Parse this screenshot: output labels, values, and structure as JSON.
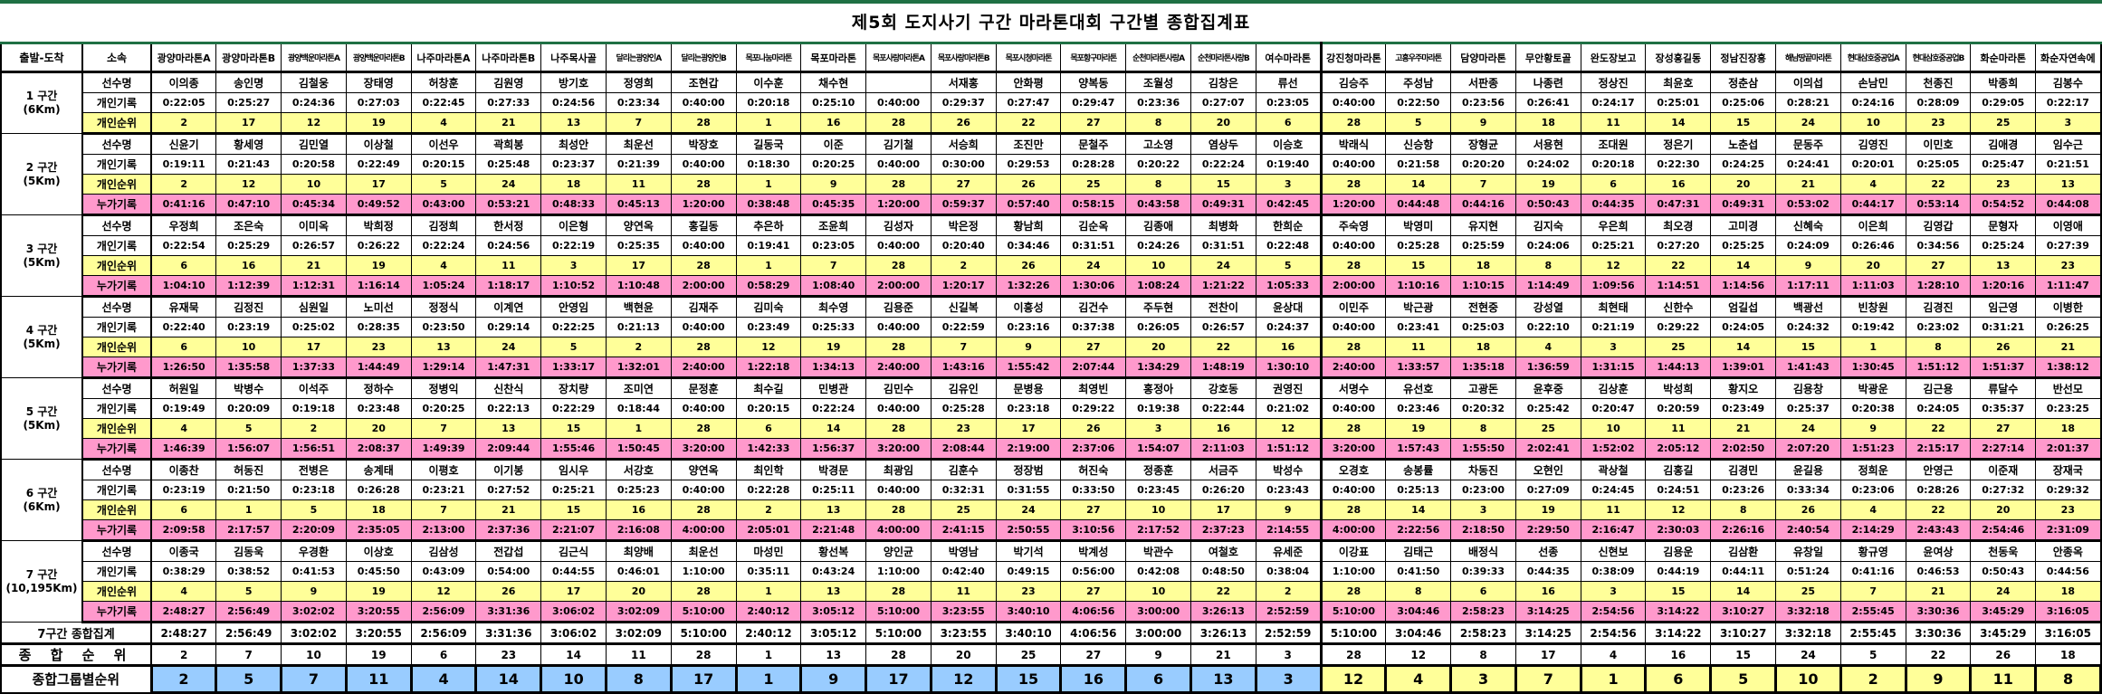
{
  "title": "제5회 도지사기 구간 마라톤대회 구간별 종합집계표",
  "header": {
    "start_finish": "출발-도착",
    "affiliation": "소속"
  },
  "row_labels": {
    "name": "선수명",
    "record": "개인기록",
    "rank": "개인순위",
    "cumulative": "누가기록"
  },
  "summary_labels": {
    "total": "7구간 종합집계",
    "overall_rank": "종 합 순 위",
    "group_rank": "종합그룹별순위"
  },
  "colors": {
    "top_bar_green": "#1F7044",
    "rank_row_yellow": "#FFFF99",
    "cumulative_row_pink": "#FF99CC",
    "group1_blue": "#99CCFF",
    "group2_yellow": "#FFFF99",
    "grid_black": "#000000"
  },
  "group_split_index": 18,
  "teams": [
    "광양마라톤A",
    "광양마라톤B",
    "광양백운마라톤A",
    "광양백운마라톤B",
    "나주마라톤A",
    "나주마라톤B",
    "나주목사골",
    "달리는광양인A",
    "달리는광양인B",
    "목포나눔마라톤",
    "목포마라톤",
    "목포사랑마라톤A",
    "목포사랑마라톤B",
    "목포시청마라톤",
    "목포항구마라톤",
    "순천마라톤사랑A",
    "순천마라톤사랑B",
    "여수마라톤",
    "강진청마라톤",
    "고흥우주마라톤",
    "담양마라톤",
    "무안황토골",
    "완도장보고",
    "장성홍길동",
    "정남진장흥",
    "해남땅끝마라톤",
    "현대삼호중공업A",
    "현대삼호중공업B",
    "화순마라톤",
    "화순자연속에"
  ],
  "sections": [
    {
      "label": "1 구간",
      "distance": "(6Km)",
      "cumulative": false,
      "names": [
        "이의종",
        "송인명",
        "김철웅",
        "장태영",
        "허창훈",
        "김원영",
        "방기호",
        "정영희",
        "조현갑",
        "이수훈",
        "채수현",
        "",
        "서재홍",
        "안화평",
        "양복동",
        "조월성",
        "김창은",
        "류선",
        "김승주",
        "주성남",
        "서판종",
        "나종련",
        "정상진",
        "최윤호",
        "정춘삼",
        "이의섭",
        "손남민",
        "천종진",
        "박종희",
        "김봉수"
      ],
      "records": [
        "0:22:05",
        "0:25:27",
        "0:24:36",
        "0:27:03",
        "0:22:45",
        "0:27:33",
        "0:24:56",
        "0:23:34",
        "0:40:00",
        "0:20:18",
        "0:25:10",
        "0:40:00",
        "0:29:37",
        "0:27:47",
        "0:29:47",
        "0:23:36",
        "0:27:07",
        "0:23:05",
        "0:40:00",
        "0:22:50",
        "0:23:56",
        "0:26:41",
        "0:24:17",
        "0:25:01",
        "0:25:06",
        "0:28:21",
        "0:24:16",
        "0:28:09",
        "0:29:05",
        "0:22:17"
      ],
      "ranks": [
        "2",
        "17",
        "12",
        "19",
        "4",
        "21",
        "13",
        "7",
        "28",
        "1",
        "16",
        "28",
        "26",
        "22",
        "27",
        "8",
        "20",
        "6",
        "28",
        "5",
        "9",
        "18",
        "11",
        "14",
        "15",
        "24",
        "10",
        "23",
        "25",
        "3"
      ]
    },
    {
      "label": "2 구간",
      "distance": "(5Km)",
      "cumulative": true,
      "names": [
        "신윤기",
        "황세영",
        "김민열",
        "이상철",
        "이선우",
        "곽희봉",
        "최성안",
        "최운선",
        "박장호",
        "길동국",
        "이준",
        "김기철",
        "서승희",
        "조진만",
        "문철주",
        "고소영",
        "염상두",
        "이승호",
        "박래식",
        "신승항",
        "장형균",
        "서용현",
        "조대원",
        "정은기",
        "노춘섭",
        "문동주",
        "김영진",
        "이민호",
        "김애경",
        "임수근"
      ],
      "records": [
        "0:19:11",
        "0:21:43",
        "0:20:58",
        "0:22:49",
        "0:20:15",
        "0:25:48",
        "0:23:37",
        "0:21:39",
        "0:40:00",
        "0:18:30",
        "0:20:25",
        "0:40:00",
        "0:30:00",
        "0:29:53",
        "0:28:28",
        "0:20:22",
        "0:22:24",
        "0:19:40",
        "0:40:00",
        "0:21:58",
        "0:20:20",
        "0:24:02",
        "0:20:18",
        "0:22:30",
        "0:24:25",
        "0:24:41",
        "0:20:01",
        "0:25:05",
        "0:25:47",
        "0:21:51"
      ],
      "ranks": [
        "2",
        "12",
        "10",
        "17",
        "5",
        "24",
        "18",
        "11",
        "28",
        "1",
        "9",
        "28",
        "27",
        "26",
        "25",
        "8",
        "15",
        "3",
        "28",
        "14",
        "7",
        "19",
        "6",
        "16",
        "20",
        "21",
        "4",
        "22",
        "23",
        "13"
      ],
      "cumulatives": [
        "0:41:16",
        "0:47:10",
        "0:45:34",
        "0:49:52",
        "0:43:00",
        "0:53:21",
        "0:48:33",
        "0:45:13",
        "1:20:00",
        "0:38:48",
        "0:45:35",
        "1:20:00",
        "0:59:37",
        "0:57:40",
        "0:58:15",
        "0:43:58",
        "0:49:31",
        "0:42:45",
        "1:20:00",
        "0:44:48",
        "0:44:16",
        "0:50:43",
        "0:44:35",
        "0:47:31",
        "0:49:31",
        "0:53:02",
        "0:44:17",
        "0:53:14",
        "0:54:52",
        "0:44:08"
      ]
    },
    {
      "label": "3 구간",
      "distance": "(5Km)",
      "cumulative": true,
      "names": [
        "우정희",
        "조은숙",
        "이미옥",
        "박희정",
        "김정희",
        "한서정",
        "이은형",
        "양연옥",
        "홍길동",
        "추은하",
        "조윤희",
        "김성자",
        "박은정",
        "황남희",
        "김순옥",
        "김종애",
        "최병화",
        "한희순",
        "주숙영",
        "박영미",
        "유지현",
        "김지숙",
        "우은희",
        "최오경",
        "고미경",
        "신혜숙",
        "이은희",
        "김영갑",
        "문형자",
        "이영애"
      ],
      "records": [
        "0:22:54",
        "0:25:29",
        "0:26:57",
        "0:26:22",
        "0:22:24",
        "0:24:56",
        "0:22:19",
        "0:25:35",
        "0:40:00",
        "0:19:41",
        "0:23:05",
        "0:40:00",
        "0:20:40",
        "0:34:46",
        "0:31:51",
        "0:24:26",
        "0:31:51",
        "0:22:48",
        "0:40:00",
        "0:25:28",
        "0:25:59",
        "0:24:06",
        "0:25:21",
        "0:27:20",
        "0:25:25",
        "0:24:09",
        "0:26:46",
        "0:34:56",
        "0:25:24",
        "0:27:39"
      ],
      "ranks": [
        "6",
        "16",
        "21",
        "19",
        "4",
        "11",
        "3",
        "17",
        "28",
        "1",
        "7",
        "28",
        "2",
        "26",
        "24",
        "10",
        "24",
        "5",
        "28",
        "15",
        "18",
        "8",
        "12",
        "22",
        "14",
        "9",
        "20",
        "27",
        "13",
        "23"
      ],
      "cumulatives": [
        "1:04:10",
        "1:12:39",
        "1:12:31",
        "1:16:14",
        "1:05:24",
        "1:18:17",
        "1:10:52",
        "1:10:48",
        "2:00:00",
        "0:58:29",
        "1:08:40",
        "2:00:00",
        "1:20:17",
        "1:32:26",
        "1:30:06",
        "1:08:24",
        "1:21:22",
        "1:05:33",
        "2:00:00",
        "1:10:16",
        "1:10:15",
        "1:14:49",
        "1:09:56",
        "1:14:51",
        "1:14:56",
        "1:17:11",
        "1:11:03",
        "1:28:10",
        "1:20:16",
        "1:11:47"
      ]
    },
    {
      "label": "4 구간",
      "distance": "(5Km)",
      "cumulative": true,
      "names": [
        "유재묵",
        "김정진",
        "심원일",
        "노미선",
        "정정식",
        "이계연",
        "안영임",
        "백현윤",
        "김재주",
        "김미숙",
        "최수영",
        "김용준",
        "신길복",
        "이흥성",
        "김건수",
        "주두현",
        "전찬이",
        "윤상대",
        "이민주",
        "박근광",
        "전현중",
        "강성열",
        "최현태",
        "신한수",
        "엄길섭",
        "백광선",
        "빈창원",
        "김경진",
        "임근영",
        "이병한"
      ],
      "records": [
        "0:22:40",
        "0:23:19",
        "0:25:02",
        "0:28:35",
        "0:23:50",
        "0:29:14",
        "0:22:25",
        "0:21:13",
        "0:40:00",
        "0:23:49",
        "0:25:33",
        "0:40:00",
        "0:22:59",
        "0:23:16",
        "0:37:38",
        "0:26:05",
        "0:26:57",
        "0:24:37",
        "0:40:00",
        "0:23:41",
        "0:25:03",
        "0:22:10",
        "0:21:19",
        "0:29:22",
        "0:24:05",
        "0:24:32",
        "0:19:42",
        "0:23:02",
        "0:31:21",
        "0:26:25"
      ],
      "ranks": [
        "6",
        "10",
        "17",
        "23",
        "13",
        "24",
        "5",
        "2",
        "28",
        "12",
        "19",
        "28",
        "7",
        "9",
        "27",
        "20",
        "22",
        "16",
        "28",
        "11",
        "18",
        "4",
        "3",
        "25",
        "14",
        "15",
        "1",
        "8",
        "26",
        "21"
      ],
      "cumulatives": [
        "1:26:50",
        "1:35:58",
        "1:37:33",
        "1:44:49",
        "1:29:14",
        "1:47:31",
        "1:33:17",
        "1:32:01",
        "2:40:00",
        "1:22:18",
        "1:34:13",
        "2:40:00",
        "1:43:16",
        "1:55:42",
        "2:07:44",
        "1:34:29",
        "1:48:19",
        "1:30:10",
        "2:40:00",
        "1:33:57",
        "1:35:18",
        "1:36:59",
        "1:31:15",
        "1:44:13",
        "1:39:01",
        "1:41:43",
        "1:30:45",
        "1:51:12",
        "1:51:37",
        "1:38:12"
      ]
    },
    {
      "label": "5 구간",
      "distance": "(5Km)",
      "cumulative": true,
      "names": [
        "허원일",
        "박병수",
        "이석주",
        "정하수",
        "정병익",
        "신찬식",
        "장치량",
        "조미연",
        "문정훈",
        "최수길",
        "민병관",
        "김민수",
        "김유인",
        "문병용",
        "최영빈",
        "홍정아",
        "강호동",
        "권영진",
        "서명수",
        "유선호",
        "고광돈",
        "윤후중",
        "김상훈",
        "박성희",
        "황지오",
        "김용창",
        "박광운",
        "김근용",
        "류달수",
        "반선모"
      ],
      "records": [
        "0:19:49",
        "0:20:09",
        "0:19:18",
        "0:23:48",
        "0:20:25",
        "0:22:13",
        "0:22:29",
        "0:18:44",
        "0:40:00",
        "0:20:15",
        "0:22:24",
        "0:40:00",
        "0:25:28",
        "0:23:18",
        "0:29:22",
        "0:19:38",
        "0:22:44",
        "0:21:02",
        "0:40:00",
        "0:23:46",
        "0:20:32",
        "0:25:42",
        "0:20:47",
        "0:20:59",
        "0:23:49",
        "0:25:37",
        "0:20:38",
        "0:24:05",
        "0:35:37",
        "0:23:25"
      ],
      "ranks": [
        "4",
        "5",
        "2",
        "20",
        "7",
        "13",
        "15",
        "1",
        "28",
        "6",
        "14",
        "28",
        "23",
        "17",
        "26",
        "3",
        "16",
        "12",
        "28",
        "19",
        "8",
        "25",
        "10",
        "11",
        "21",
        "24",
        "9",
        "22",
        "27",
        "18"
      ],
      "cumulatives": [
        "1:46:39",
        "1:56:07",
        "1:56:51",
        "2:08:37",
        "1:49:39",
        "2:09:44",
        "1:55:46",
        "1:50:45",
        "3:20:00",
        "1:42:33",
        "1:56:37",
        "3:20:00",
        "2:08:44",
        "2:19:00",
        "2:37:06",
        "1:54:07",
        "2:11:03",
        "1:51:12",
        "3:20:00",
        "1:57:43",
        "1:55:50",
        "2:02:41",
        "1:52:02",
        "2:05:12",
        "2:02:50",
        "2:07:20",
        "1:51:23",
        "2:15:17",
        "2:27:14",
        "2:01:37"
      ]
    },
    {
      "label": "6 구간",
      "distance": "(6Km)",
      "cumulative": true,
      "names": [
        "이종찬",
        "허동진",
        "전병은",
        "송계태",
        "이평호",
        "이기봉",
        "임시우",
        "서강호",
        "양연옥",
        "최인학",
        "박경문",
        "최광임",
        "김훈수",
        "정장범",
        "허진숙",
        "정종훈",
        "서금주",
        "박성수",
        "오경호",
        "송봉률",
        "차동진",
        "오현인",
        "곽상철",
        "김홍길",
        "김경민",
        "윤길용",
        "정희운",
        "안영근",
        "이준재",
        "장재국"
      ],
      "records": [
        "0:23:19",
        "0:21:50",
        "0:23:18",
        "0:26:28",
        "0:23:21",
        "0:27:52",
        "0:25:21",
        "0:25:23",
        "0:40:00",
        "0:22:28",
        "0:25:11",
        "0:40:00",
        "0:32:31",
        "0:31:55",
        "0:33:50",
        "0:23:45",
        "0:26:20",
        "0:23:43",
        "0:40:00",
        "0:25:13",
        "0:23:00",
        "0:27:09",
        "0:24:45",
        "0:24:51",
        "0:23:26",
        "0:33:34",
        "0:23:06",
        "0:28:26",
        "0:27:32",
        "0:29:32"
      ],
      "ranks": [
        "6",
        "1",
        "5",
        "18",
        "7",
        "21",
        "15",
        "16",
        "28",
        "2",
        "13",
        "28",
        "25",
        "24",
        "27",
        "10",
        "17",
        "9",
        "28",
        "14",
        "3",
        "19",
        "11",
        "12",
        "8",
        "26",
        "4",
        "22",
        "20",
        "23"
      ],
      "cumulatives": [
        "2:09:58",
        "2:17:57",
        "2:20:09",
        "2:35:05",
        "2:13:00",
        "2:37:36",
        "2:21:07",
        "2:16:08",
        "4:00:00",
        "2:05:01",
        "2:21:48",
        "4:00:00",
        "2:41:15",
        "2:50:55",
        "3:10:56",
        "2:17:52",
        "2:37:23",
        "2:14:55",
        "4:00:00",
        "2:22:56",
        "2:18:50",
        "2:29:50",
        "2:16:47",
        "2:30:03",
        "2:26:16",
        "2:40:54",
        "2:14:29",
        "2:43:43",
        "2:54:46",
        "2:31:09"
      ]
    },
    {
      "label": "7 구간",
      "distance": "(10,195Km)",
      "cumulative": true,
      "names": [
        "이종국",
        "김동욱",
        "우경환",
        "이상호",
        "김삼성",
        "전갑섭",
        "김근식",
        "최양배",
        "최운선",
        "마성민",
        "황선복",
        "양인균",
        "박영남",
        "박기석",
        "박계성",
        "박관수",
        "여철호",
        "유세준",
        "이강표",
        "김태근",
        "배정식",
        "선종",
        "신현보",
        "김용운",
        "김삼환",
        "유창일",
        "황규영",
        "윤여상",
        "천동욱",
        "안종옥"
      ],
      "records": [
        "0:38:29",
        "0:38:52",
        "0:41:53",
        "0:45:50",
        "0:43:09",
        "0:54:00",
        "0:44:55",
        "0:46:01",
        "1:10:00",
        "0:35:11",
        "0:43:24",
        "1:10:00",
        "0:42:40",
        "0:49:15",
        "0:56:00",
        "0:42:08",
        "0:48:50",
        "0:38:04",
        "1:10:00",
        "0:41:50",
        "0:39:33",
        "0:44:35",
        "0:38:09",
        "0:44:19",
        "0:44:11",
        "0:51:24",
        "0:41:16",
        "0:46:53",
        "0:50:43",
        "0:44:56"
      ],
      "ranks": [
        "4",
        "5",
        "9",
        "19",
        "12",
        "26",
        "17",
        "20",
        "28",
        "1",
        "13",
        "28",
        "11",
        "23",
        "27",
        "10",
        "22",
        "2",
        "28",
        "8",
        "6",
        "16",
        "3",
        "15",
        "14",
        "25",
        "7",
        "21",
        "24",
        "18"
      ],
      "cumulatives": [
        "2:48:27",
        "2:56:49",
        "3:02:02",
        "3:20:55",
        "2:56:09",
        "3:31:36",
        "3:06:02",
        "3:02:09",
        "5:10:00",
        "2:40:12",
        "3:05:12",
        "5:10:00",
        "3:23:55",
        "3:40:10",
        "4:06:56",
        "3:00:00",
        "3:26:13",
        "2:52:59",
        "5:10:00",
        "3:04:46",
        "2:58:23",
        "3:14:25",
        "2:54:56",
        "3:14:22",
        "3:10:27",
        "3:32:18",
        "2:55:45",
        "3:30:36",
        "3:45:29",
        "3:16:05"
      ]
    }
  ],
  "summary": {
    "totals": [
      "2:48:27",
      "2:56:49",
      "3:02:02",
      "3:20:55",
      "2:56:09",
      "3:31:36",
      "3:06:02",
      "3:02:09",
      "5:10:00",
      "2:40:12",
      "3:05:12",
      "5:10:00",
      "3:23:55",
      "3:40:10",
      "4:06:56",
      "3:00:00",
      "3:26:13",
      "2:52:59",
      "5:10:00",
      "3:04:46",
      "2:58:23",
      "3:14:25",
      "2:54:56",
      "3:14:22",
      "3:10:27",
      "3:32:18",
      "2:55:45",
      "3:30:36",
      "3:45:29",
      "3:16:05"
    ],
    "overall_ranks": [
      "2",
      "7",
      "10",
      "19",
      "6",
      "23",
      "14",
      "11",
      "28",
      "1",
      "13",
      "28",
      "20",
      "25",
      "27",
      "9",
      "21",
      "3",
      "28",
      "12",
      "8",
      "17",
      "4",
      "16",
      "15",
      "24",
      "5",
      "22",
      "26",
      "18"
    ],
    "group_ranks": [
      "2",
      "5",
      "7",
      "11",
      "4",
      "14",
      "10",
      "8",
      "17",
      "1",
      "9",
      "17",
      "12",
      "15",
      "16",
      "6",
      "13",
      "3",
      "12",
      "4",
      "3",
      "7",
      "1",
      "6",
      "5",
      "10",
      "2",
      "9",
      "11",
      "8"
    ]
  }
}
